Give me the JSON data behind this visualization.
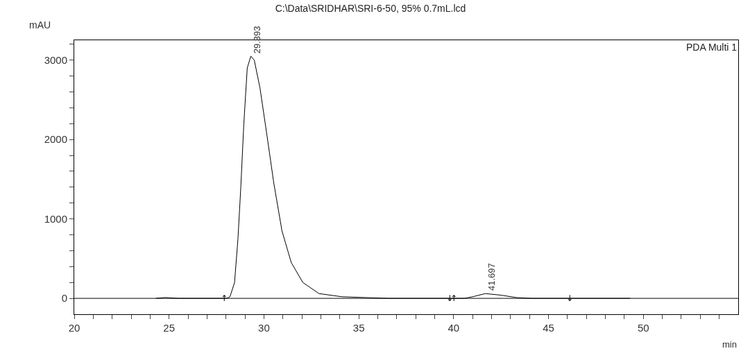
{
  "chart_data": {
    "type": "line",
    "title": "C:\\Data\\SRIDHAR\\SRI-6-50, 95% 0.7mL.lcd",
    "xlabel": "min",
    "ylabel": "mAU",
    "x": [
      24.3,
      24.8,
      25.5,
      27.5,
      28.03,
      28.21,
      28.45,
      28.63,
      28.78,
      28.94,
      29.12,
      29.31,
      29.49,
      29.79,
      30.16,
      30.52,
      30.95,
      31.44,
      32.05,
      32.9,
      34.11,
      36.55,
      39.8,
      40.57,
      41.0,
      41.67,
      42.5,
      43.3,
      44.1,
      49.3
    ],
    "series": [
      {
        "color": "#000000",
        "values": [
          0,
          10,
          0,
          0,
          0,
          20,
          200,
          750,
          1400,
          2200,
          2900,
          3050,
          3000,
          2650,
          2050,
          1450,
          850,
          450,
          200,
          60,
          20,
          0,
          0,
          0,
          20,
          60,
          40,
          10,
          0,
          0
        ]
      }
    ],
    "xlim": [
      20,
      55
    ],
    "ylim": [
      -200,
      3250
    ],
    "xticks": [
      20,
      {
        "value": 21,
        "label": null
      },
      {
        "value": 22,
        "label": null
      },
      {
        "value": 23,
        "label": null
      },
      {
        "value": 24,
        "label": null
      },
      25,
      {
        "value": 26,
        "label": null
      },
      {
        "value": 27,
        "label": null
      },
      {
        "value": 28,
        "label": null
      },
      {
        "value": 29,
        "label": null
      },
      30,
      {
        "value": 31,
        "label": null
      },
      {
        "value": 32,
        "label": null
      },
      {
        "value": 33,
        "label": null
      },
      {
        "value": 34,
        "label": null
      },
      35,
      {
        "value": 36,
        "label": null
      },
      {
        "value": 37,
        "label": null
      },
      {
        "value": 38,
        "label": null
      },
      {
        "value": 39,
        "label": null
      },
      40,
      {
        "value": 41,
        "label": null
      },
      {
        "value": 42,
        "label": null
      },
      {
        "value": 43,
        "label": null
      },
      {
        "value": 44,
        "label": null
      },
      45,
      {
        "value": 46,
        "label": null
      },
      {
        "value": 47,
        "label": null
      },
      {
        "value": 48,
        "label": null
      },
      {
        "value": 49,
        "label": null
      },
      50,
      {
        "value": 51,
        "label": null
      },
      {
        "value": 52,
        "label": null
      },
      {
        "value": 53,
        "label": null
      },
      {
        "value": 54,
        "label": null
      }
    ],
    "yticks": [
      0,
      {
        "value": 200,
        "label": null
      },
      {
        "value": 400,
        "label": null
      },
      {
        "value": 600,
        "label": null
      },
      {
        "value": 800,
        "label": null
      },
      1000,
      {
        "value": 1200,
        "label": null
      },
      {
        "value": 1400,
        "label": null
      },
      {
        "value": 1600,
        "label": null
      },
      {
        "value": 1800,
        "label": null
      },
      2000,
      {
        "value": 2200,
        "label": null
      },
      {
        "value": 2400,
        "label": null
      },
      {
        "value": 2600,
        "label": null
      },
      {
        "value": 2800,
        "label": null
      },
      3000,
      {
        "value": 3200,
        "label": null
      }
    ],
    "ref_lines": [
      {
        "axis": "y",
        "value": 0,
        "color": "#000000"
      }
    ],
    "annotations": [
      {
        "text": "29.393",
        "x": 29.393,
        "y": 3050
      },
      {
        "text": "41.697",
        "x": 41.697,
        "y": 60
      },
      {
        "text": "↑",
        "x": 27.9,
        "y": 0
      },
      {
        "text": "↓",
        "x": 39.8,
        "y": 0
      },
      {
        "text": "↑",
        "x": 40.0,
        "y": 0
      },
      {
        "text": "↓",
        "x": 46.1,
        "y": 0
      },
      "PDA Multi 1"
    ],
    "marker": "none",
    "line_style": "solid"
  }
}
